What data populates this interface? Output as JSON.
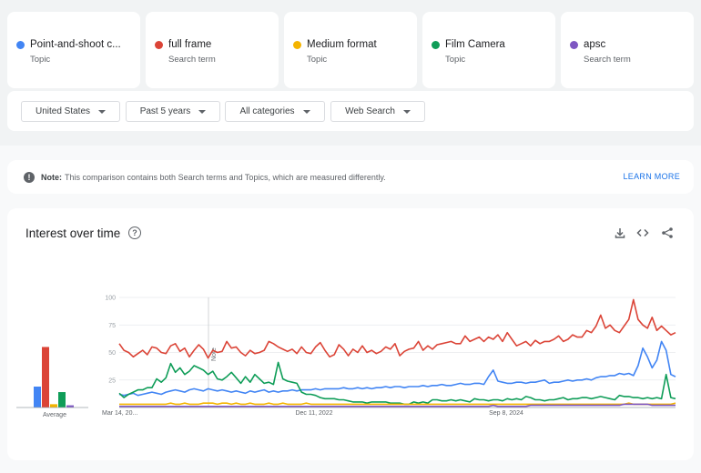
{
  "terms": [
    {
      "name": "Point-and-shoot c...",
      "type": "Topic",
      "color": "#4285f4"
    },
    {
      "name": "full frame",
      "type": "Search term",
      "color": "#db4437"
    },
    {
      "name": "Medium format",
      "type": "Topic",
      "color": "#f4b400"
    },
    {
      "name": "Film Camera",
      "type": "Topic",
      "color": "#0f9d58"
    },
    {
      "name": "apsc",
      "type": "Search term",
      "color": "#7e57c2"
    }
  ],
  "filters": {
    "region": "United States",
    "period": "Past 5 years",
    "category": "All categories",
    "property": "Web Search"
  },
  "note": {
    "label": "Note:",
    "text": "This comparison contains both Search terms and Topics, which are measured differently.",
    "link": "LEARN MORE"
  },
  "chart_panel": {
    "title": "Interest over time",
    "icons": [
      "help-icon",
      "download-icon",
      "embed-icon",
      "share-icon"
    ]
  },
  "chart_data": {
    "type": "line",
    "ylim": [
      0,
      100
    ],
    "yticks": [
      25,
      50,
      75,
      100
    ],
    "xtick_labels": [
      "Mar 14, 20...",
      "Dec 11, 2022",
      "Sep 8, 2024"
    ],
    "annotation": "Note",
    "average_label": "Average",
    "averages": [
      {
        "name": "Point-and-shoot c...",
        "value": 19
      },
      {
        "name": "full frame",
        "value": 55
      },
      {
        "name": "Medium format",
        "value": 3
      },
      {
        "name": "Film Camera",
        "value": 14
      },
      {
        "name": "apsc",
        "value": 2
      }
    ],
    "series": [
      {
        "name": "full frame",
        "color": "#db4437",
        "values": [
          58,
          52,
          50,
          46,
          49,
          52,
          48,
          55,
          54,
          50,
          49,
          56,
          58,
          51,
          54,
          46,
          52,
          57,
          53,
          45,
          52,
          50,
          51,
          60,
          54,
          55,
          50,
          47,
          52,
          49,
          50,
          52,
          60,
          58,
          55,
          53,
          51,
          53,
          49,
          55,
          50,
          49,
          55,
          59,
          52,
          46,
          48,
          57,
          53,
          47,
          53,
          50,
          56,
          50,
          52,
          49,
          51,
          55,
          53,
          58,
          47,
          51,
          53,
          54,
          60,
          52,
          56,
          53,
          57,
          58,
          59,
          60,
          58,
          58,
          65,
          60,
          62,
          64,
          60,
          64,
          62,
          66,
          60,
          68,
          62,
          56,
          58,
          60,
          56,
          61,
          58,
          60,
          60,
          62,
          65,
          60,
          62,
          66,
          64,
          64,
          70,
          68,
          74,
          84,
          72,
          75,
          70,
          68,
          74,
          80,
          98,
          80,
          75,
          72,
          82,
          70,
          74,
          70,
          66,
          68
        ]
      },
      {
        "name": "Point-and-shoot c...",
        "color": "#4285f4",
        "values": [
          12,
          11,
          12,
          13,
          11,
          12,
          13,
          14,
          13,
          12,
          14,
          15,
          16,
          15,
          14,
          16,
          17,
          16,
          15,
          17,
          16,
          15,
          16,
          15,
          14,
          15,
          14,
          13,
          15,
          14,
          15,
          16,
          14,
          15,
          14,
          15,
          15,
          16,
          15,
          16,
          16,
          16,
          17,
          16,
          17,
          17,
          17,
          17,
          18,
          17,
          17,
          18,
          17,
          18,
          17,
          18,
          18,
          19,
          18,
          19,
          19,
          18,
          19,
          19,
          19,
          20,
          19,
          20,
          20,
          21,
          20,
          20,
          21,
          22,
          21,
          21,
          22,
          22,
          21,
          28,
          34,
          24,
          23,
          22,
          22,
          23,
          23,
          22,
          23,
          23,
          24,
          25,
          22,
          23,
          23,
          24,
          25,
          24,
          25,
          25,
          26,
          25,
          27,
          28,
          28,
          29,
          29,
          31,
          30,
          31,
          29,
          38,
          54,
          46,
          36,
          43,
          60,
          52,
          30,
          28
        ]
      },
      {
        "name": "Film Camera",
        "color": "#0f9d58",
        "values": [
          13,
          9,
          12,
          14,
          16,
          16,
          18,
          18,
          26,
          23,
          27,
          40,
          32,
          36,
          30,
          33,
          38,
          36,
          34,
          30,
          33,
          26,
          25,
          28,
          32,
          27,
          22,
          28,
          23,
          30,
          26,
          22,
          23,
          21,
          41,
          26,
          24,
          23,
          22,
          14,
          12,
          12,
          11,
          9,
          8,
          8,
          8,
          7,
          7,
          6,
          5,
          5,
          5,
          4,
          5,
          5,
          5,
          5,
          4,
          4,
          4,
          3,
          3,
          5,
          4,
          5,
          4,
          7,
          7,
          6,
          6,
          7,
          6,
          7,
          6,
          5,
          8,
          7,
          7,
          6,
          7,
          7,
          6,
          8,
          7,
          8,
          7,
          10,
          9,
          7,
          7,
          6,
          7,
          7,
          8,
          9,
          7,
          8,
          8,
          9,
          9,
          8,
          9,
          10,
          9,
          8,
          7,
          11,
          10,
          10,
          9,
          9,
          8,
          9,
          8,
          9,
          8,
          30,
          9,
          8
        ]
      },
      {
        "name": "Medium format",
        "color": "#f4b400",
        "values": [
          3,
          3,
          3,
          3,
          3,
          3,
          3,
          3,
          3,
          3,
          3,
          4,
          3,
          3,
          4,
          3,
          3,
          3,
          4,
          4,
          4,
          3,
          4,
          4,
          3,
          4,
          3,
          3,
          4,
          3,
          3,
          3,
          4,
          3,
          3,
          4,
          3,
          3,
          3,
          3,
          4,
          3,
          3,
          3,
          3,
          3,
          3,
          3,
          3,
          3,
          3,
          3,
          3,
          3,
          3,
          3,
          3,
          3,
          3,
          3,
          3,
          3,
          3,
          3,
          3,
          3,
          3,
          3,
          3,
          3,
          3,
          3,
          3,
          3,
          3,
          3,
          3,
          3,
          3,
          3,
          3,
          3,
          3,
          3,
          3,
          3,
          3,
          3,
          3,
          3,
          3,
          3,
          3,
          3,
          3,
          3,
          3,
          3,
          3,
          3,
          3,
          3,
          3,
          3,
          3,
          3,
          3,
          3,
          3,
          4,
          3,
          3,
          3,
          3,
          3,
          3,
          3,
          3,
          3,
          4
        ]
      },
      {
        "name": "apsc",
        "color": "#7e57c2",
        "values": [
          1,
          1,
          1,
          1,
          1,
          1,
          1,
          1,
          1,
          1,
          1,
          1,
          1,
          1,
          1,
          1,
          1,
          1,
          1,
          1,
          1,
          1,
          1,
          1,
          1,
          1,
          1,
          1,
          1,
          1,
          1,
          1,
          1,
          1,
          1,
          1,
          1,
          1,
          1,
          1,
          1,
          1,
          1,
          1,
          1,
          1,
          1,
          1,
          1,
          1,
          1,
          1,
          1,
          1,
          1,
          1,
          1,
          1,
          1,
          1,
          1,
          1,
          1,
          1,
          1,
          1,
          1,
          1,
          1,
          1,
          1,
          1,
          1,
          1,
          1,
          1,
          1,
          1,
          1,
          1,
          2,
          1,
          1,
          1,
          1,
          1,
          1,
          1,
          2,
          2,
          2,
          2,
          2,
          2,
          2,
          2,
          2,
          2,
          2,
          2,
          2,
          2,
          2,
          2,
          2,
          2,
          2,
          2,
          3,
          3,
          3,
          3,
          3,
          3,
          2,
          2,
          2,
          2,
          2,
          2
        ]
      }
    ]
  }
}
